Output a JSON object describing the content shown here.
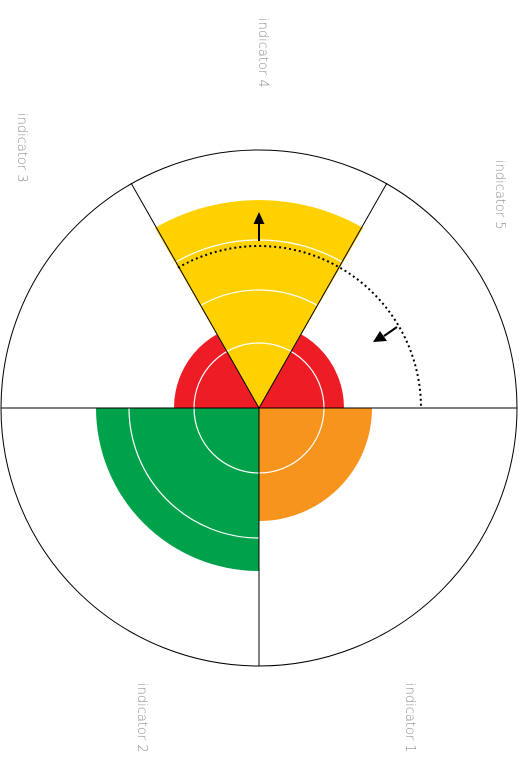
{
  "labels": [
    "indicator 1",
    "indicator 2",
    "indicator 3",
    "indicator 4",
    "indicator 5"
  ]
}
